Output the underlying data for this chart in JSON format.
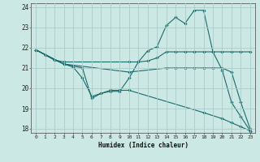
{
  "xlabel": "Humidex (Indice chaleur)",
  "bg_color": "#cce8e4",
  "grid_color": "#aacccc",
  "line_color": "#1a6b6b",
  "xlim": [
    -0.5,
    23.5
  ],
  "ylim": [
    17.8,
    24.2
  ],
  "yticks": [
    18,
    19,
    20,
    21,
    22,
    23,
    24
  ],
  "xticks": [
    0,
    1,
    2,
    3,
    4,
    5,
    6,
    7,
    8,
    9,
    10,
    11,
    12,
    13,
    14,
    15,
    16,
    17,
    18,
    19,
    20,
    21,
    22,
    23
  ],
  "series": [
    {
      "x": [
        0,
        1,
        2,
        3,
        4,
        5,
        6,
        7,
        8,
        9,
        10,
        11,
        12,
        13,
        14,
        15,
        16,
        17,
        18,
        19,
        20,
        21,
        22,
        23
      ],
      "y": [
        21.9,
        21.65,
        21.4,
        21.2,
        21.05,
        20.5,
        19.6,
        19.75,
        19.85,
        19.85,
        20.5,
        21.3,
        21.85,
        22.05,
        23.1,
        23.5,
        23.2,
        23.85,
        23.85,
        21.8,
        20.9,
        19.3,
        18.6,
        17.9
      ]
    },
    {
      "x": [
        0,
        1,
        2,
        3,
        10,
        11,
        12,
        13,
        14,
        15,
        16,
        17,
        18,
        19,
        20,
        21,
        22,
        23
      ],
      "y": [
        21.9,
        21.65,
        21.4,
        21.3,
        21.3,
        21.3,
        21.35,
        21.5,
        21.8,
        21.8,
        21.8,
        21.8,
        21.8,
        21.8,
        21.8,
        21.8,
        21.8,
        21.8
      ]
    },
    {
      "x": [
        0,
        3,
        10,
        14,
        15,
        16,
        17,
        18,
        19,
        20,
        21,
        22,
        23
      ],
      "y": [
        21.9,
        21.2,
        20.8,
        21.0,
        21.0,
        21.0,
        21.0,
        21.0,
        21.0,
        21.0,
        20.8,
        19.3,
        18.0
      ]
    },
    {
      "x": [
        0,
        3,
        5,
        6,
        7,
        8,
        9,
        10,
        18,
        20,
        21,
        22,
        23
      ],
      "y": [
        21.9,
        21.2,
        21.0,
        19.5,
        19.75,
        19.9,
        19.9,
        19.9,
        18.8,
        18.5,
        18.3,
        18.1,
        17.9
      ]
    }
  ]
}
